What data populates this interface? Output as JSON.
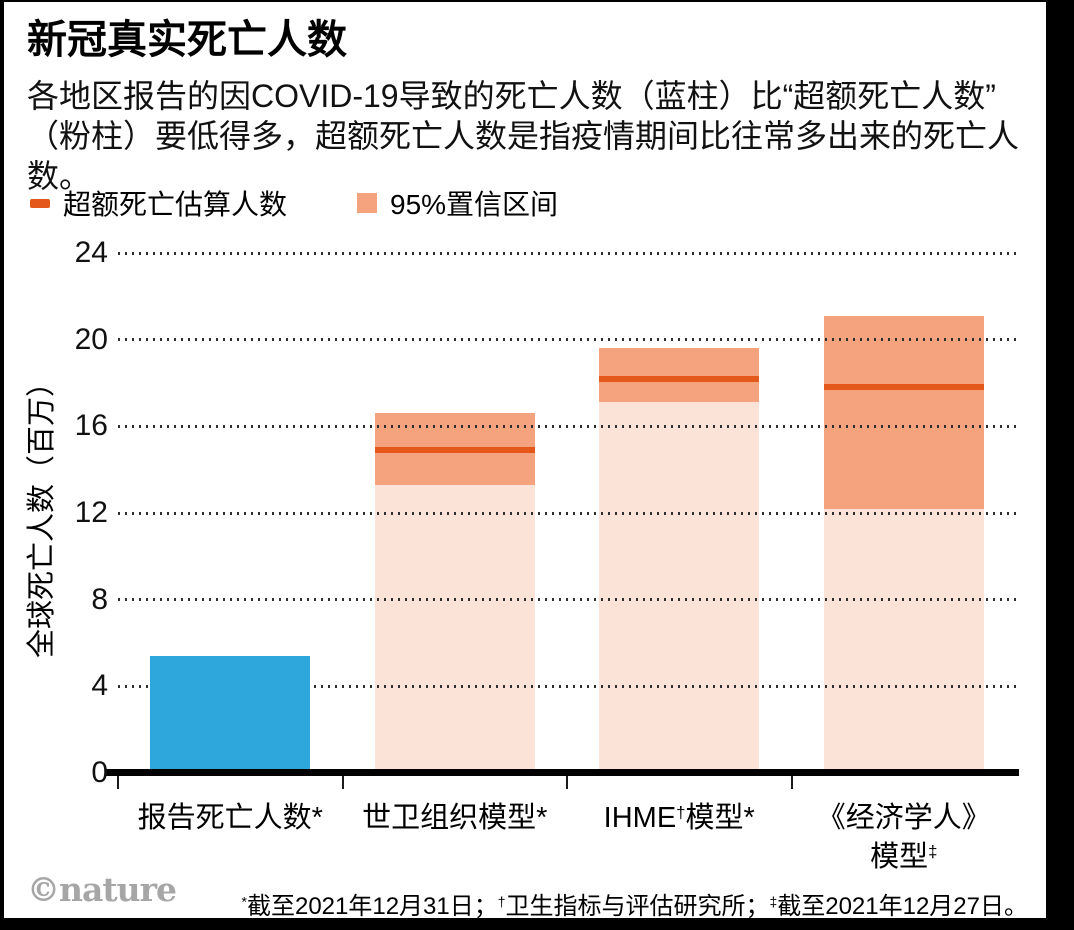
{
  "chart_data": {
    "type": "bar",
    "title": "新冠真实死亡人数",
    "subtitle_line1": "各地区报告的因COVID-19导致的死亡人数（蓝柱）比“超额死亡人数”",
    "subtitle_line2": "（粉柱）要低得多，超额死亡人数是指疫情期间比往常多出来的死亡人数。",
    "ylabel": "全球死亡人数（百万）",
    "ylim": [
      0,
      24
    ],
    "yticks": [
      0,
      4,
      8,
      12,
      16,
      20,
      24
    ],
    "grid": "horizontal-dotted",
    "legend_position": "top-left",
    "legend": [
      {
        "swatch": "dash",
        "label": "超额死亡估算人数"
      },
      {
        "swatch": "square",
        "label": "95%置信区间"
      }
    ],
    "categories": [
      "报告死亡人数*",
      "世卫组织模型*",
      "IHME†模型*",
      "《经济学人》模型‡"
    ],
    "bars": [
      {
        "category": "报告死亡人数*",
        "kind": "reported",
        "value": 5.4
      },
      {
        "category": "世卫组织模型*",
        "kind": "model",
        "estimate": 14.9,
        "ci_low": 13.3,
        "ci_high": 16.6
      },
      {
        "category": "IHME†模型*",
        "kind": "model",
        "estimate": 18.2,
        "ci_low": 17.1,
        "ci_high": 19.6
      },
      {
        "category": "《经济学人》模型‡",
        "kind": "model",
        "estimate": 17.8,
        "ci_low": 12.2,
        "ci_high": 21.1
      }
    ],
    "xlabels": [
      {
        "lines": [
          [
            {
              "t": "报告死亡人数"
            },
            {
              "t": "*"
            }
          ]
        ]
      },
      {
        "lines": [
          [
            {
              "t": "世卫组织模型"
            },
            {
              "t": "*"
            }
          ]
        ]
      },
      {
        "lines": [
          [
            {
              "t": "IHME"
            },
            {
              "t": "†",
              "sup": true
            },
            {
              "t": "模型"
            },
            {
              "t": "*"
            }
          ]
        ]
      },
      {
        "lines": [
          [
            {
              "t": "《经济学人》"
            }
          ],
          [
            {
              "t": "模型"
            },
            {
              "t": "‡",
              "sup": true
            }
          ]
        ]
      }
    ]
  },
  "colors": {
    "reported_bar": "#2ea7dc",
    "ci_band": "#f5a27f",
    "bar_light": "#fbe3d8",
    "estimate_line": "#e4591b",
    "grid_dot": "#2e2e2e",
    "axis": "#000000",
    "tick": "#1a1a1a",
    "logo_gray": "#a6a6a6"
  },
  "footer": {
    "logo": "©nature",
    "footnote_parts": [
      {
        "t": "*",
        "sup": true
      },
      {
        "t": "截至2021年12月31日；"
      },
      {
        "t": "†",
        "sup": true
      },
      {
        "t": "卫生指标与评估研究所；"
      },
      {
        "t": "‡",
        "sup": true
      },
      {
        "t": "截至2021年12月27日。"
      }
    ]
  }
}
